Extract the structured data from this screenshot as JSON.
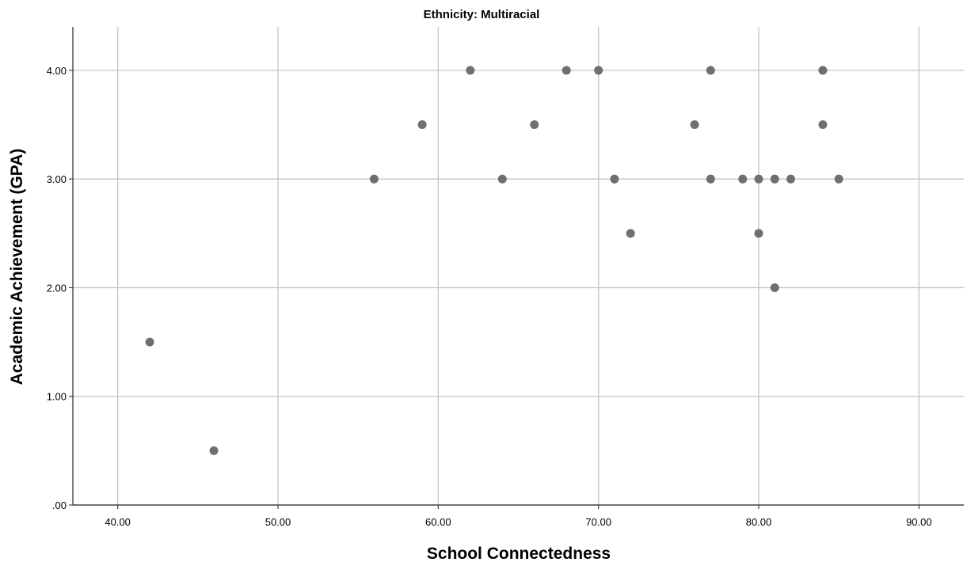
{
  "chart_data": {
    "type": "scatter",
    "title": "Ethnicity: Multiracial",
    "xlabel": "School Connectedness",
    "ylabel": "Academic Achievement (GPA)",
    "xlim": [
      37.2,
      92.8
    ],
    "ylim": [
      0,
      4.4
    ],
    "x_ticks": [
      40,
      50,
      60,
      70,
      80,
      90
    ],
    "x_tick_labels": [
      "40.00",
      "50.00",
      "60.00",
      "70.00",
      "80.00",
      "90.00"
    ],
    "y_ticks": [
      0,
      1,
      2,
      3,
      4
    ],
    "y_tick_labels": [
      ".00",
      "1.00",
      "2.00",
      "3.00",
      "4.00"
    ],
    "grid": true,
    "marker_color": "#6f6f6f",
    "points": [
      {
        "x": 42,
        "y": 1.5
      },
      {
        "x": 46,
        "y": 0.5
      },
      {
        "x": 56,
        "y": 3.0
      },
      {
        "x": 59,
        "y": 3.5
      },
      {
        "x": 62,
        "y": 4.0
      },
      {
        "x": 64,
        "y": 3.0
      },
      {
        "x": 66,
        "y": 3.5
      },
      {
        "x": 68,
        "y": 4.0
      },
      {
        "x": 70,
        "y": 4.0
      },
      {
        "x": 71,
        "y": 3.0
      },
      {
        "x": 72,
        "y": 2.5
      },
      {
        "x": 76,
        "y": 3.5
      },
      {
        "x": 77,
        "y": 4.0
      },
      {
        "x": 77,
        "y": 3.0
      },
      {
        "x": 79,
        "y": 3.0
      },
      {
        "x": 80,
        "y": 3.0
      },
      {
        "x": 80,
        "y": 2.5
      },
      {
        "x": 81,
        "y": 3.0
      },
      {
        "x": 81,
        "y": 2.0
      },
      {
        "x": 82,
        "y": 3.0
      },
      {
        "x": 84,
        "y": 4.0
      },
      {
        "x": 84,
        "y": 3.5
      },
      {
        "x": 85,
        "y": 3.0
      }
    ]
  }
}
